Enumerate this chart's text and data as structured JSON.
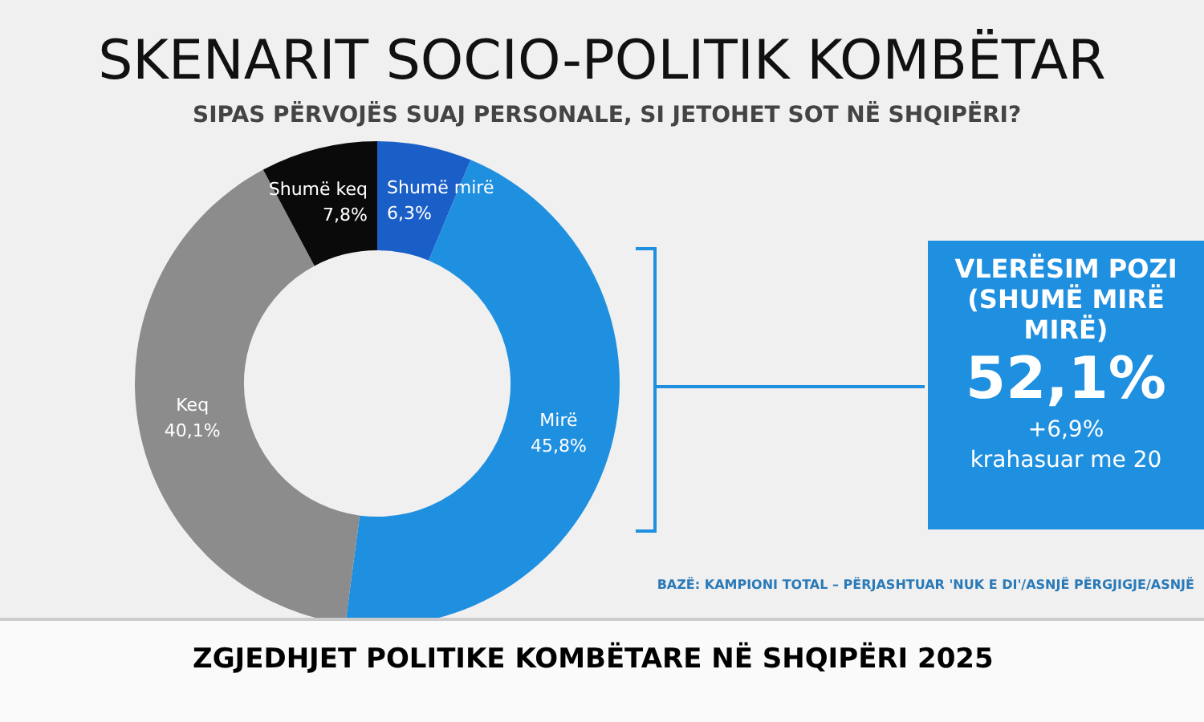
{
  "chart_data": {
    "type": "donut",
    "title": "SKENARIT SOCIO-POLITIK KOMBËTAR",
    "subtitle": "SIPAS PËRVOJËS SUAJ PERSONALE, SI JETOHET SOT NË SHQIPËRI?",
    "categories": [
      "Shumë mirë",
      "Mirë",
      "Keq",
      "Shumë keq"
    ],
    "values": [
      6.3,
      45.8,
      40.1,
      7.8
    ],
    "colors": [
      "#1a5fc8",
      "#1f8fe0",
      "#8c8c8c",
      "#0a0a0a"
    ],
    "value_labels": [
      "6,3%",
      "45,8%",
      "40,1%",
      "7,8%"
    ],
    "legend": false,
    "annotations": [
      "VLERËSIM POZI",
      "(SHUMË MIRË",
      "MIRË)",
      "52,1%",
      "+6,9%",
      "krahasuar me 20",
      "BAZË: KAMPIONI TOTAL – PËRJASHTUAR 'NUK E DI'/ASNJË PËRGJIGJE/ASNJË",
      "ZGJEDHJET POLITIKE KOMBËTARE NË SHQIPËRI 2025"
    ]
  }
}
